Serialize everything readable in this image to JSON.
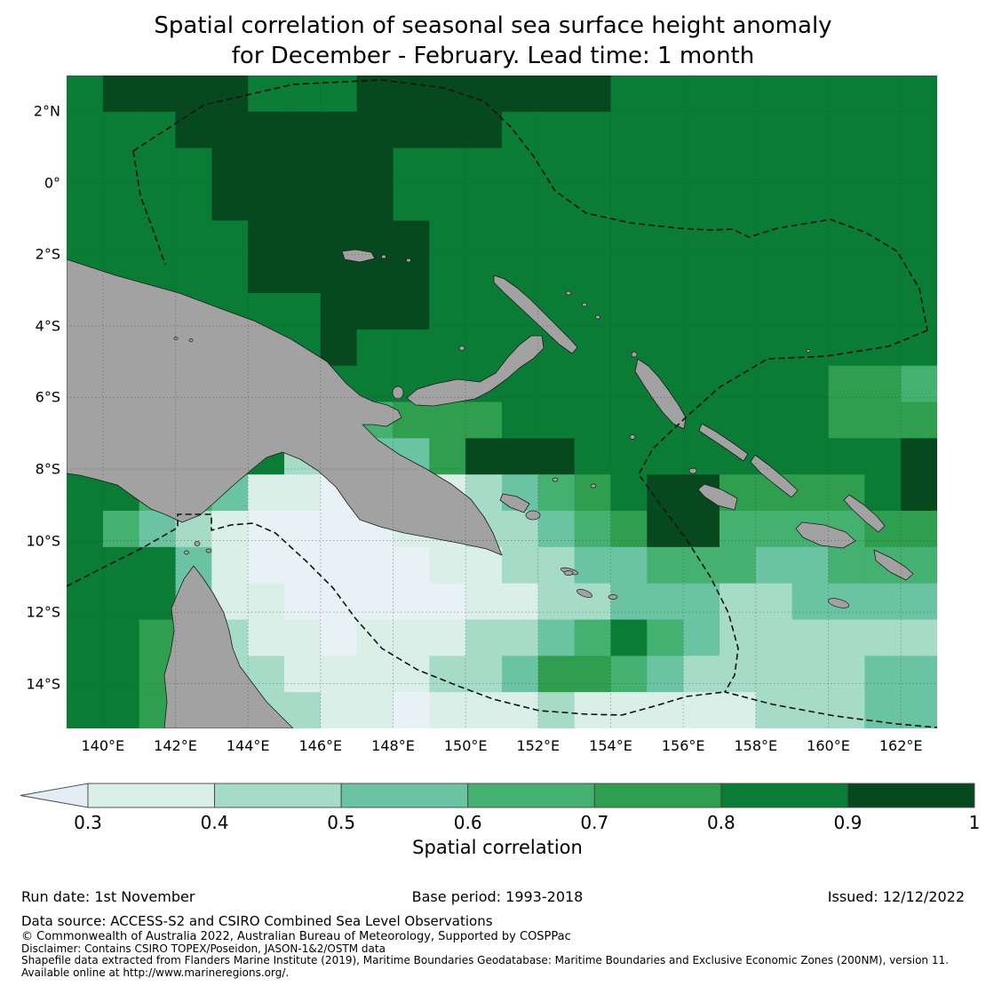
{
  "title": {
    "line1": "Spatial correlation of seasonal sea surface height anomaly",
    "line2": "for December - February. Lead time: 1 month"
  },
  "colors": {
    "palette": [
      "#e8f1f5",
      "#d9efe7",
      "#a6dcc7",
      "#6ac4a4",
      "#45b171",
      "#2f9e4e",
      "#0b7c35",
      "#07491f"
    ],
    "under_arrow": "#e4edf6",
    "land": "#a2a2a2",
    "coastline": "#1c1c1c",
    "eez_line": "#111111",
    "gridline": "#3a3a3a"
  },
  "map": {
    "lat_labels": [
      "2°N",
      "0°",
      "2°S",
      "4°S",
      "6°S",
      "8°S",
      "10°S",
      "12°S",
      "14°S"
    ],
    "lon_labels": [
      "140°E",
      "142°E",
      "144°E",
      "146°E",
      "148°E",
      "150°E",
      "152°E",
      "154°E",
      "156°E",
      "158°E",
      "160°E",
      "162°E"
    ]
  },
  "colorbar": {
    "ticks": [
      "0.3",
      "0.4",
      "0.5",
      "0.6",
      "0.7",
      "0.8",
      "0.9",
      "1"
    ],
    "label": "Spatial correlation"
  },
  "footer": {
    "run_date": "Run date: 1st November",
    "base_period": "Base period: 1993-2018",
    "issued": "Issued: 12/12/2022",
    "data_source": "Data source: ACCESS-S2 and CSIRO Combined Sea Level Observations",
    "copyright": "© Commonwealth of Australia 2022, Australian Bureau of Meteorology, Supported by COSPPac",
    "disclaimer": "Disclaimer: Contains CSIRO TOPEX/Poseidon, JASON-1&2/OSTM data",
    "shapefile": "Shapefile data extracted from Flanders Marine Institute (2019), Maritime Boundaries Geodatabase: Maritime Boundaries and Exclusive Economic Zones (200NM), version 11.",
    "available": "Available online at http://www.marineregions.org/."
  },
  "chart_data": {
    "type": "heatmap",
    "title": "Spatial correlation of seasonal sea surface height anomaly for December - February. Lead time: 1 month",
    "colorbar_label": "Spatial correlation",
    "levels": [
      0.3,
      0.4,
      0.5,
      0.6,
      0.7,
      0.8,
      0.9,
      1.0
    ],
    "level_classes": [
      "<0.3",
      "0.3-0.4",
      "0.4-0.5",
      "0.5-0.6",
      "0.6-0.7",
      "0.7-0.8",
      "0.8-0.9",
      "0.9-1.0"
    ],
    "lon_range": [
      139,
      163
    ],
    "lat_range": [
      -15.25,
      3
    ],
    "x_ticks": [
      140,
      142,
      144,
      146,
      148,
      150,
      152,
      154,
      156,
      158,
      160,
      162
    ],
    "y_ticks": [
      2,
      0,
      -2,
      -4,
      -6,
      -8,
      -10,
      -12,
      -14
    ],
    "grid_cell_deg": 1,
    "grid_origin": {
      "lon": 139,
      "lat_top": 3
    },
    "grid_note": "Each digit is a correlation color-class index 0-7 (0 = <0.3 ... 7 = 0.9-1.0); 24 columns (139E-163E) x 18 rows (3N-15S); land areas overdrawn in gray.",
    "grid_rows": [
      "677776667777777666666666",
      "666777777777666666666666",
      "666677777666666666666666",
      "666677777666666666666666",
      "666667777766666666666666",
      "666667777766666666666666",
      "666666677766666666666666",
      "666666676666666666666666",
      "666666666666666666666554",
      "666666434555666666666555",
      "666666223357776666666667",
      "664431100112345677555567",
      "643210000112234577444455",
      "666310000011223344433444",
      "666311000001122333223333",
      "665221101112234643222222",
      "665222111122355432222233",
      "665332211011121111122233"
    ],
    "regions_shown": [
      "Papua New Guinea",
      "Cape York Peninsula (Australia)",
      "New Britain",
      "New Ireland",
      "Manus",
      "Bougainville",
      "Solomon Islands"
    ],
    "boundary_overlay": "dashed maritime EEZ boundaries (200NM)"
  }
}
